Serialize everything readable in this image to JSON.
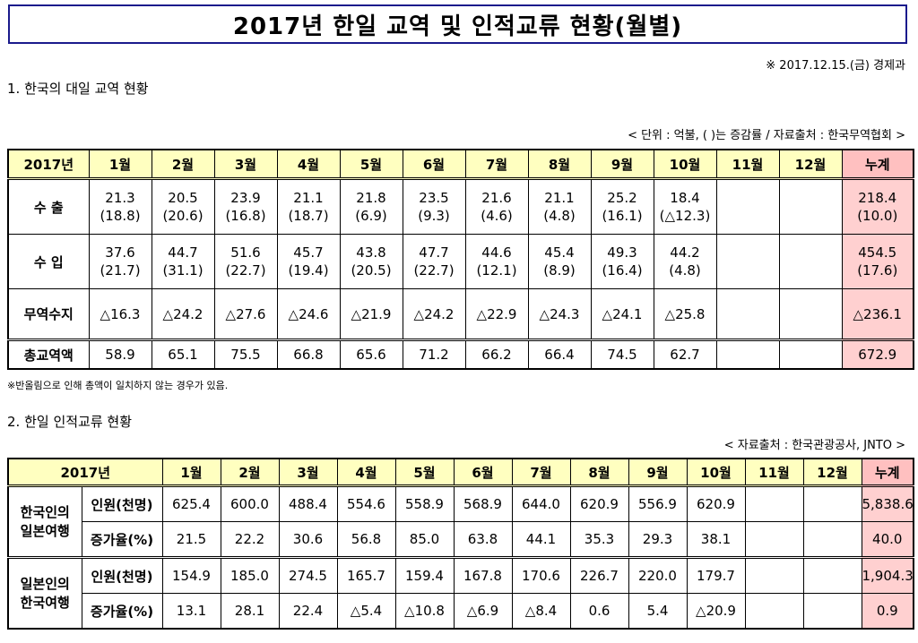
{
  "title": "2017년 한일 교역 및 인적교류 현황(월별)",
  "date_line": "※ 2017.12.15.(금) 경제과",
  "section1": {
    "title": "1. 한국의 대일 교역 현황",
    "unit_note": "< 단위 : 억불, (  )는 증감률 / 자료출처 : 한국무역협회 >",
    "header": [
      "2017년",
      "1월",
      "2월",
      "3월",
      "4월",
      "5월",
      "6월",
      "7월",
      "8월",
      "9월",
      "10월",
      "11월",
      "12월",
      "누계"
    ],
    "rows": [
      {
        "label": "수  출",
        "values": [
          "21.3",
          "20.5",
          "23.9",
          "21.1",
          "21.8",
          "23.5",
          "21.6",
          "21.1",
          "25.2",
          "18.4",
          "",
          "",
          "218.4"
        ],
        "rates": [
          "(18.8)",
          "(20.6)",
          "(16.8)",
          "(18.7)",
          "(6.9)",
          "(9.3)",
          "(4.6)",
          "(4.8)",
          "(16.1)",
          "(△12.3)",
          "",
          "",
          "(10.0)"
        ]
      },
      {
        "label": "수  입",
        "values": [
          "37.6",
          "44.7",
          "51.6",
          "45.7",
          "43.8",
          "47.7",
          "44.6",
          "45.4",
          "49.3",
          "44.2",
          "",
          "",
          "454.5"
        ],
        "rates": [
          "(21.7)",
          "(31.1)",
          "(22.7)",
          "(19.4)",
          "(20.5)",
          "(22.7)",
          "(12.1)",
          "(8.9)",
          "(16.4)",
          "(4.8)",
          "",
          "",
          "(17.6)"
        ]
      }
    ],
    "balance": {
      "label": "무역수지",
      "values": [
        "△16.3",
        "△24.2",
        "△27.6",
        "△24.6",
        "△21.9",
        "△24.2",
        "△22.9",
        "△24.3",
        "△24.1",
        "△25.8",
        "",
        "",
        "△236.1"
      ]
    },
    "total": {
      "label": "총교역액",
      "values": [
        "58.9",
        "65.1",
        "75.5",
        "66.8",
        "65.6",
        "71.2",
        "66.2",
        "66.4",
        "74.5",
        "62.7",
        "",
        "",
        "672.9"
      ]
    },
    "note": "※반올림으로 인해 총액이 일치하지 않는 경우가 있음."
  },
  "section2": {
    "title": "2. 한일 인적교류 현황",
    "source": "< 자료출처 : 한국관광공사, JNTO >",
    "header": [
      "2017년",
      "1월",
      "2월",
      "3월",
      "4월",
      "5월",
      "6월",
      "7월",
      "8월",
      "9월",
      "10월",
      "11월",
      "12월",
      "누계"
    ],
    "groups": [
      {
        "label_line1": "한국인의",
        "label_line2": "일본여행",
        "rows": [
          {
            "label": "인원(천명)",
            "values": [
              "625.4",
              "600.0",
              "488.4",
              "554.6",
              "558.9",
              "568.9",
              "644.0",
              "620.9",
              "556.9",
              "620.9",
              "",
              "",
              "5,838.6"
            ]
          },
          {
            "label": "증가율(%)",
            "values": [
              "21.5",
              "22.2",
              "30.6",
              "56.8",
              "85.0",
              "63.8",
              "44.1",
              "35.3",
              "29.3",
              "38.1",
              "",
              "",
              "40.0"
            ]
          }
        ]
      },
      {
        "label_line1": "일본인의",
        "label_line2": "한국여행",
        "rows": [
          {
            "label": "인원(천명)",
            "values": [
              "154.9",
              "185.0",
              "274.5",
              "165.7",
              "159.4",
              "167.8",
              "170.6",
              "226.7",
              "220.0",
              "179.7",
              "",
              "",
              "1,904.3"
            ]
          },
          {
            "label": "증가율(%)",
            "values": [
              "13.1",
              "28.1",
              "22.4",
              "△5.4",
              "△10.8",
              "△6.9",
              "△8.4",
              "0.6",
              "5.4",
              "△20.9",
              "",
              "",
              "0.9"
            ]
          }
        ]
      }
    ]
  }
}
